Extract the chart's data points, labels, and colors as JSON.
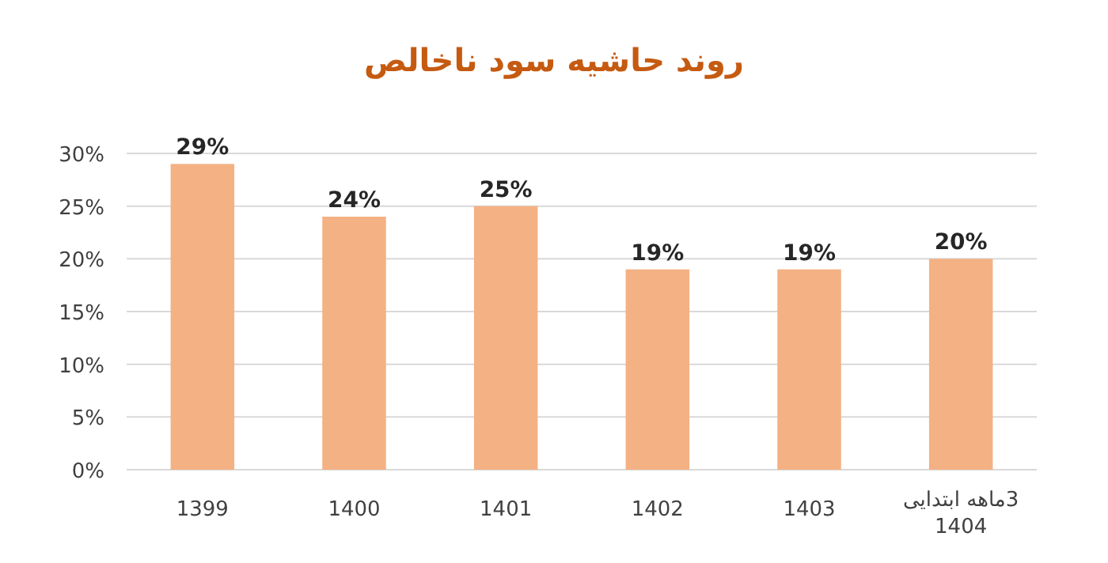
{
  "chart_data": {
    "type": "bar",
    "title": "روند حاشیه سود ناخالص",
    "categories": [
      "1399",
      "1400",
      "1401",
      "1402",
      "1403",
      "3ماهه ابتدایی 1404"
    ],
    "values": [
      29,
      24,
      25,
      19,
      19,
      20
    ],
    "value_labels": [
      "29%",
      "24%",
      "25%",
      "19%",
      "19%",
      "20%"
    ],
    "color": "#f4b183",
    "ylim": [
      0,
      30
    ],
    "yticks": [
      {
        "value": 0,
        "label": "0%"
      },
      {
        "value": 5,
        "label": "5%"
      },
      {
        "value": 10,
        "label": "10%"
      },
      {
        "value": 15,
        "label": "15%"
      },
      {
        "value": 20,
        "label": "20%"
      },
      {
        "value": 25,
        "label": "25%"
      },
      {
        "value": 30,
        "label": "30%"
      }
    ],
    "grid": "y"
  }
}
